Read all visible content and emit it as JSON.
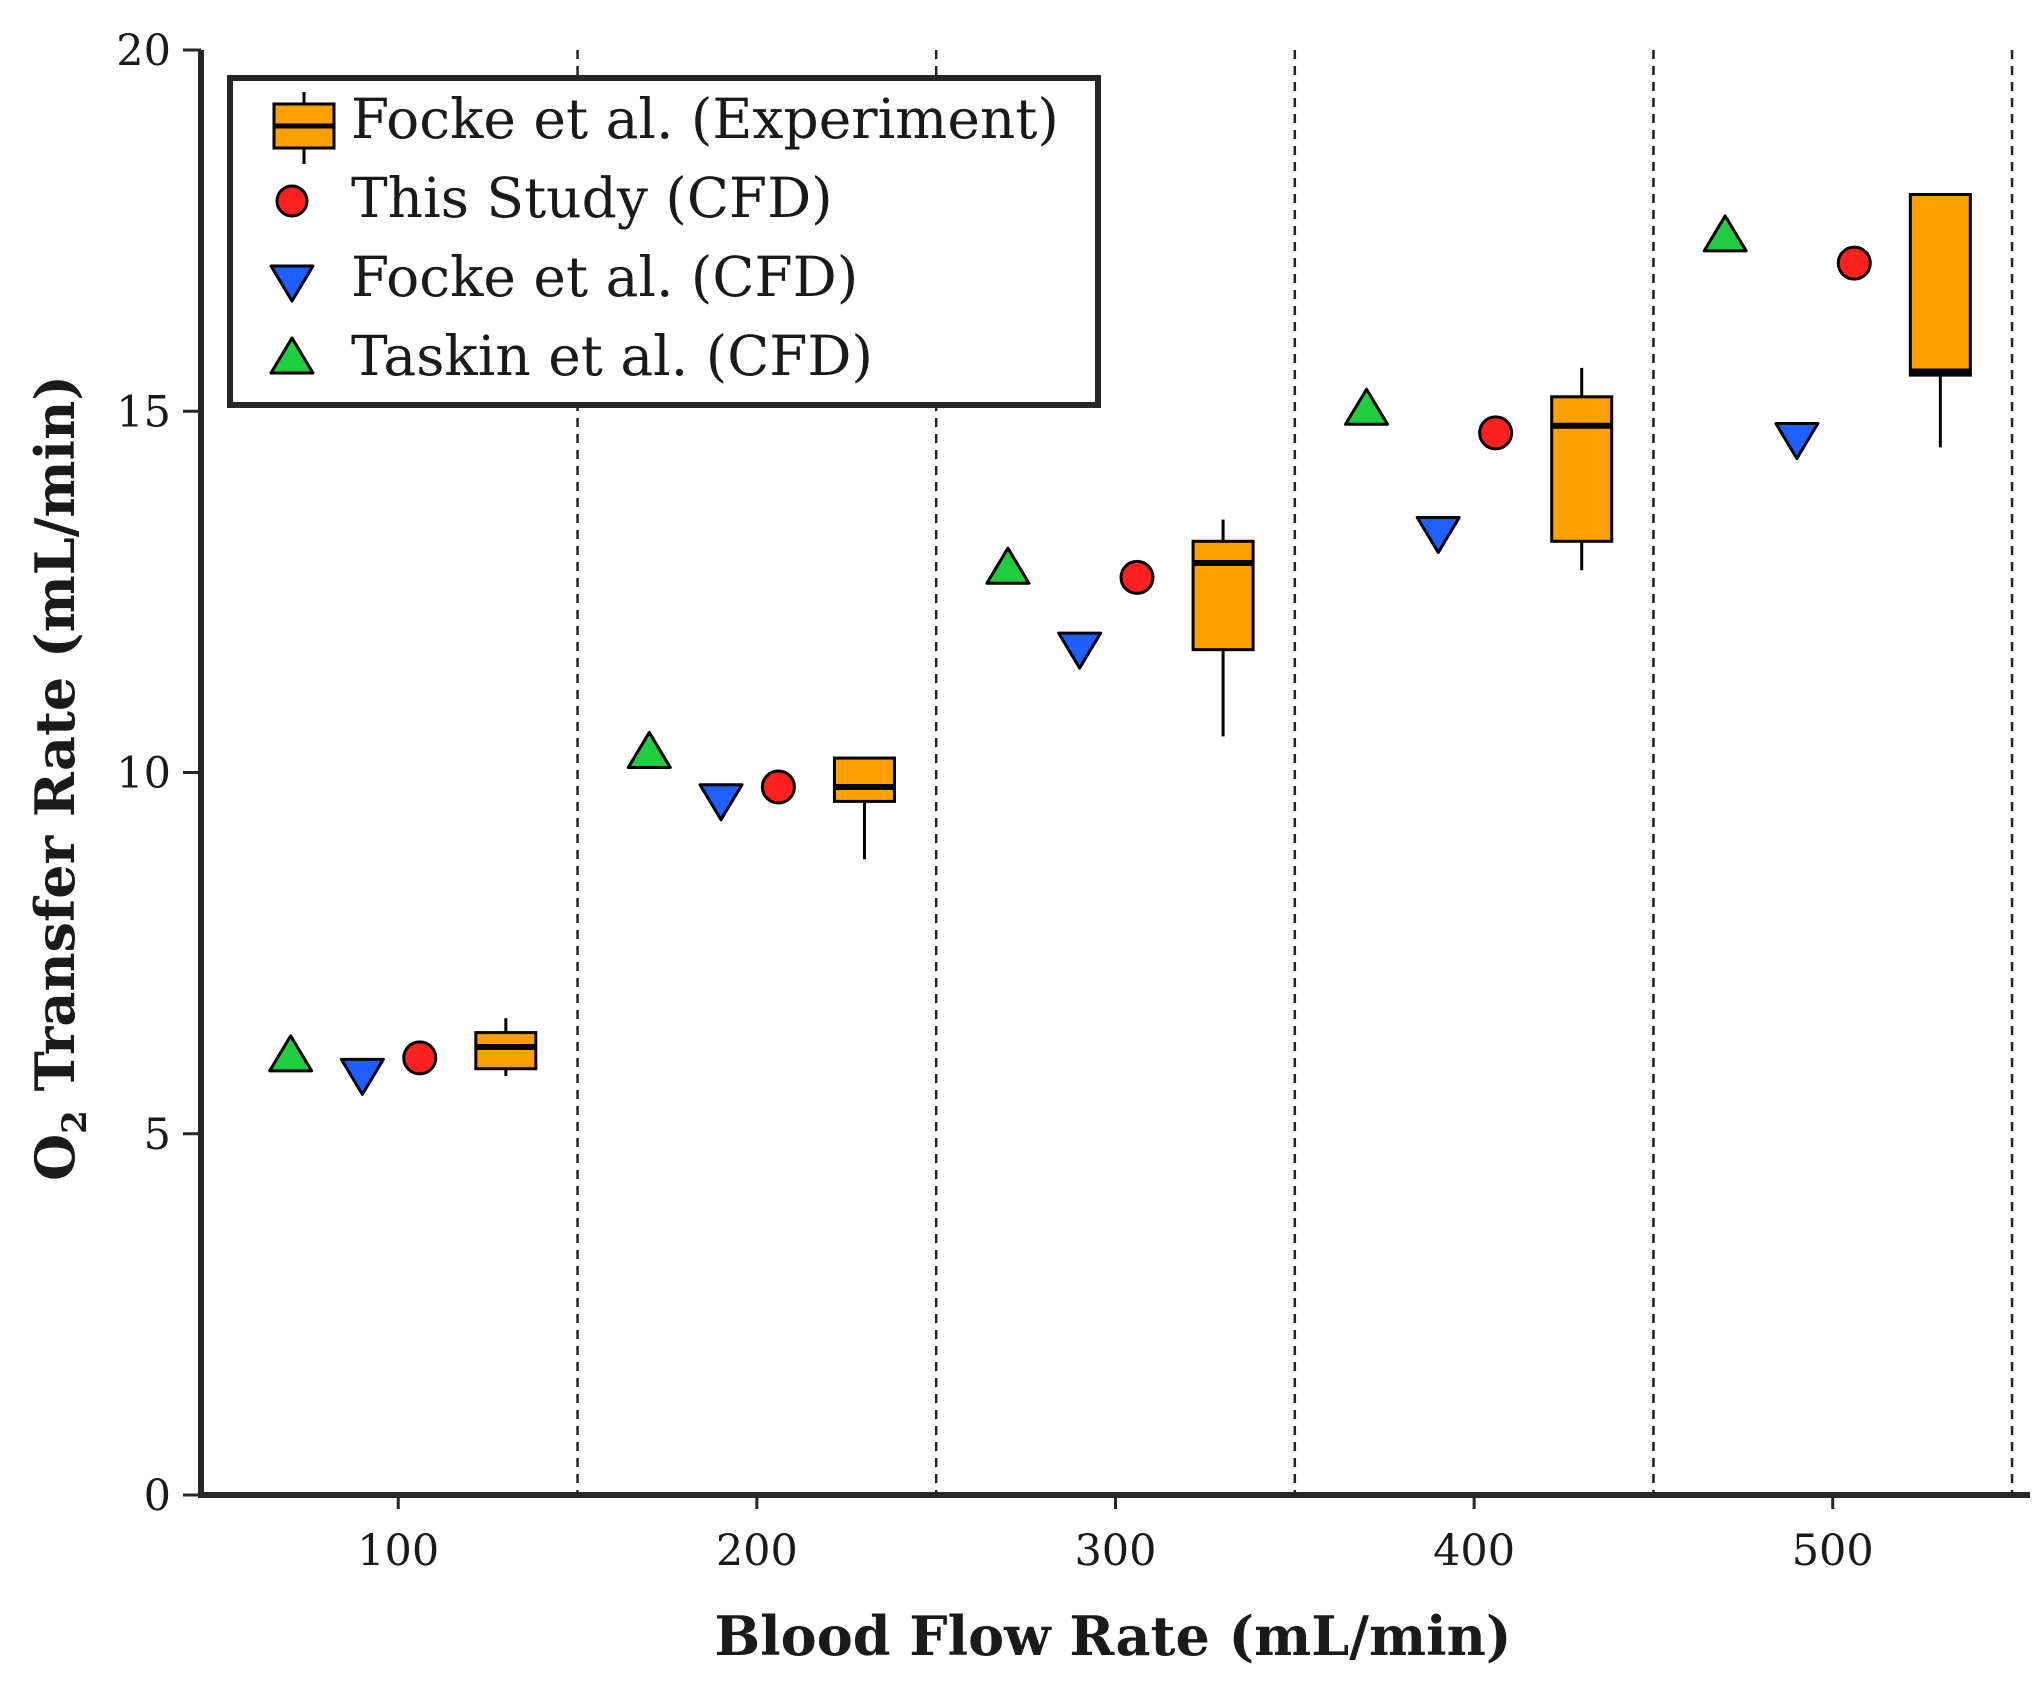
{
  "chart_data": {
    "type": "scatter",
    "title": "",
    "xlabel": "Blood Flow Rate (mL/min)",
    "ylabel_main": "O",
    "ylabel_sub": "2",
    "ylabel_rest": " Transfer Rate (mL/min)",
    "xlim": [
      45,
      555
    ],
    "ylim": [
      0,
      20
    ],
    "x_ticks": [
      100,
      200,
      300,
      400,
      500
    ],
    "y_ticks": [
      0,
      5,
      10,
      15,
      20
    ],
    "group_separators": [
      150,
      250,
      350,
      450,
      550
    ],
    "categories": [
      "100",
      "200",
      "300",
      "400",
      "500"
    ],
    "series": [
      {
        "name": "Focke et al. (Experiment)",
        "marker": "box",
        "color": "#ff9f00",
        "x": [
          130,
          230,
          330,
          430,
          530
        ],
        "boxes": [
          {
            "whisker_low": 5.8,
            "q1": 5.9,
            "median": 6.2,
            "q3": 6.4,
            "whisker_high": 6.6
          },
          {
            "whisker_low": 8.8,
            "q1": 9.6,
            "median": 9.8,
            "q3": 10.2,
            "whisker_high": 10.2
          },
          {
            "whisker_low": 10.5,
            "q1": 11.7,
            "median": 12.9,
            "q3": 13.2,
            "whisker_high": 13.5
          },
          {
            "whisker_low": 12.8,
            "q1": 13.2,
            "median": 14.8,
            "q3": 15.2,
            "whisker_high": 15.6
          },
          {
            "whisker_low": 14.5,
            "q1": 15.5,
            "median": 15.55,
            "q3": 18.0,
            "whisker_high": 18.0
          }
        ]
      },
      {
        "name": "This Study (CFD)",
        "marker": "circle",
        "color": "#ff2020",
        "x": [
          106,
          206,
          306,
          406,
          506
        ],
        "values": [
          6.05,
          9.8,
          12.7,
          14.7,
          17.05
        ]
      },
      {
        "name": "Focke et al. (CFD)",
        "marker": "triangle-down",
        "color": "#1f5fff",
        "x": [
          90,
          190,
          290,
          390,
          490
        ],
        "values": [
          5.85,
          9.65,
          11.75,
          13.35,
          14.65
        ]
      },
      {
        "name": "Taskin et al. (CFD)",
        "marker": "triangle-up",
        "color": "#20cc40",
        "x": [
          70,
          170,
          270,
          370,
          470
        ],
        "values": [
          6.05,
          10.25,
          12.8,
          15.0,
          17.4
        ]
      }
    ],
    "legend_position": "top-left",
    "grid": false
  }
}
